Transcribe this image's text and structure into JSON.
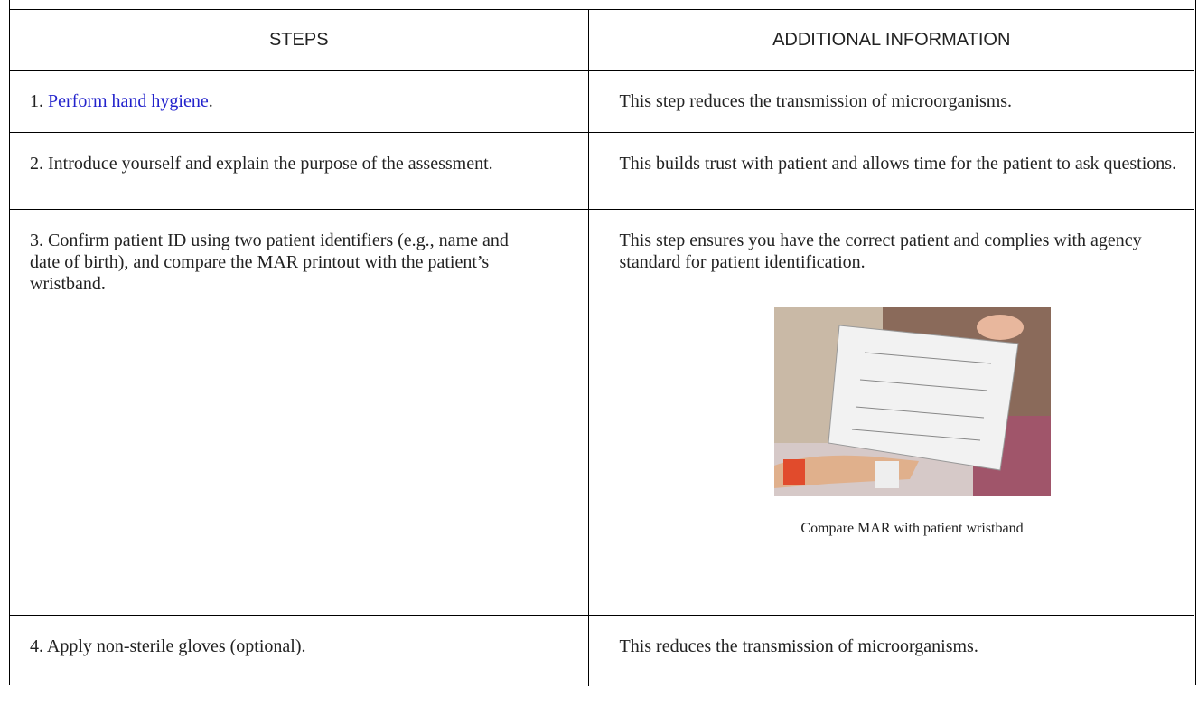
{
  "table": {
    "header": [
      "STEPS",
      "ADDITIONAL INFORMATION"
    ],
    "rows": [
      {
        "step": [
          "1.",
          "Perform hand hygiene",
          "."
        ],
        "info": "This step reduces the transmission of microorganisms."
      },
      {
        "step": [
          "2. Introduce yourself and explain the purpose of the assessment."
        ],
        "info": "This builds trust with patient and allows time for the patient to ask questions."
      },
      {
        "step": [
          "3. Confirm patient ID using two patient identifiers (e.g., name and date of birth), and compare the MAR printout with the patient’s wristband."
        ],
        "info": "This step ensures you have the correct patient and complies with agency standard for patient identification.",
        "image_caption": "Compare MAR with patient wristband"
      },
      {
        "step": [
          "4. Apply non-sterile gloves (optional)."
        ],
        "info": "This reduces the transmission of microorganisms."
      }
    ]
  }
}
